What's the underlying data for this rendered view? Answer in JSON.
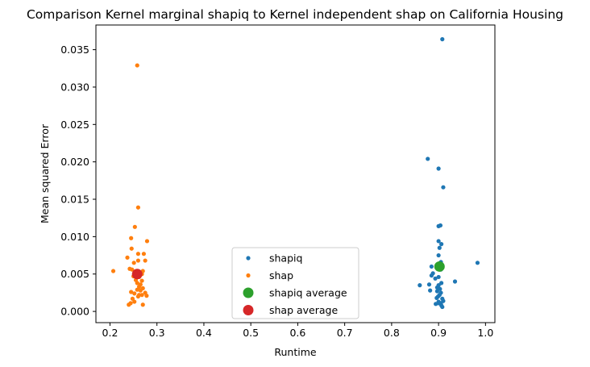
{
  "chart_data": {
    "type": "scatter",
    "title": "Comparison Kernel marginal shapiq to Kernel independent shap on California Housing",
    "xlabel": "Runtime",
    "ylabel": "Mean squared Error",
    "xlim": [
      0.17,
      1.02
    ],
    "ylim": [
      -0.0015,
      0.0383
    ],
    "xticks": [
      0.2,
      0.3,
      0.4,
      0.5,
      0.6,
      0.7,
      0.8,
      0.9,
      1.0
    ],
    "xtick_labels": [
      "0.2",
      "0.3",
      "0.4",
      "0.5",
      "0.6",
      "0.7",
      "0.8",
      "0.9",
      "1.0"
    ],
    "yticks": [
      0.0,
      0.005,
      0.01,
      0.015,
      0.02,
      0.025,
      0.03,
      0.035
    ],
    "ytick_labels": [
      "0.000",
      "0.005",
      "0.010",
      "0.015",
      "0.020",
      "0.025",
      "0.030",
      "0.035"
    ],
    "grid": false,
    "legend_position": "bottom-center",
    "series": [
      {
        "name": "shapiq",
        "color": "#1f77b4",
        "marker_size": "small",
        "points": [
          [
            0.908,
            0.0364
          ],
          [
            0.877,
            0.0204
          ],
          [
            0.9,
            0.0191
          ],
          [
            0.91,
            0.0166
          ],
          [
            0.9,
            0.0114
          ],
          [
            0.904,
            0.0115
          ],
          [
            0.9,
            0.0094
          ],
          [
            0.906,
            0.009
          ],
          [
            0.902,
            0.0085
          ],
          [
            0.9,
            0.0075
          ],
          [
            0.905,
            0.0066
          ],
          [
            0.983,
            0.0065
          ],
          [
            0.885,
            0.006
          ],
          [
            0.898,
            0.0058
          ],
          [
            0.905,
            0.0056
          ],
          [
            0.888,
            0.0051
          ],
          [
            0.885,
            0.0048
          ],
          [
            0.9,
            0.0046
          ],
          [
            0.893,
            0.0044
          ],
          [
            0.935,
            0.004
          ],
          [
            0.906,
            0.0038
          ],
          [
            0.86,
            0.0035
          ],
          [
            0.9,
            0.0035
          ],
          [
            0.88,
            0.0036
          ],
          [
            0.897,
            0.0032
          ],
          [
            0.903,
            0.003
          ],
          [
            0.882,
            0.0028
          ],
          [
            0.897,
            0.0027
          ],
          [
            0.905,
            0.0025
          ],
          [
            0.902,
            0.0022
          ],
          [
            0.899,
            0.002
          ],
          [
            0.896,
            0.0018
          ],
          [
            0.908,
            0.0017
          ],
          [
            0.91,
            0.0014
          ],
          [
            0.9,
            0.0013
          ],
          [
            0.905,
            0.0011
          ],
          [
            0.894,
            0.001
          ],
          [
            0.906,
            0.0008
          ],
          [
            0.9,
            0.0011
          ],
          [
            0.908,
            0.0006
          ]
        ]
      },
      {
        "name": "shap",
        "color": "#ff7f0e",
        "marker_size": "small",
        "points": [
          [
            0.258,
            0.0329
          ],
          [
            0.26,
            0.0139
          ],
          [
            0.253,
            0.0113
          ],
          [
            0.245,
            0.0098
          ],
          [
            0.279,
            0.0094
          ],
          [
            0.246,
            0.0084
          ],
          [
            0.272,
            0.0077
          ],
          [
            0.26,
            0.0077
          ],
          [
            0.237,
            0.0072
          ],
          [
            0.275,
            0.0068
          ],
          [
            0.26,
            0.0068
          ],
          [
            0.251,
            0.0065
          ],
          [
            0.242,
            0.0057
          ],
          [
            0.247,
            0.0056
          ],
          [
            0.207,
            0.0054
          ],
          [
            0.27,
            0.0054
          ],
          [
            0.256,
            0.0052
          ],
          [
            0.268,
            0.005
          ],
          [
            0.25,
            0.0047
          ],
          [
            0.262,
            0.0046
          ],
          [
            0.255,
            0.0042
          ],
          [
            0.268,
            0.0041
          ],
          [
            0.258,
            0.0038
          ],
          [
            0.265,
            0.0036
          ],
          [
            0.262,
            0.0033
          ],
          [
            0.27,
            0.0031
          ],
          [
            0.258,
            0.0029
          ],
          [
            0.265,
            0.0028
          ],
          [
            0.245,
            0.0026
          ],
          [
            0.275,
            0.0025
          ],
          [
            0.252,
            0.0024
          ],
          [
            0.262,
            0.0022
          ],
          [
            0.268,
            0.0022
          ],
          [
            0.278,
            0.0021
          ],
          [
            0.26,
            0.002
          ],
          [
            0.248,
            0.0017
          ],
          [
            0.244,
            0.0011
          ],
          [
            0.252,
            0.0013
          ],
          [
            0.27,
            0.0009
          ],
          [
            0.24,
            0.0009
          ]
        ]
      },
      {
        "name": "shapiq average",
        "color": "#2ca02c",
        "marker_size": "large",
        "points": [
          [
            0.902,
            0.006
          ]
        ]
      },
      {
        "name": "shap average",
        "color": "#d62728",
        "marker_size": "large",
        "points": [
          [
            0.258,
            0.005
          ]
        ]
      }
    ]
  }
}
